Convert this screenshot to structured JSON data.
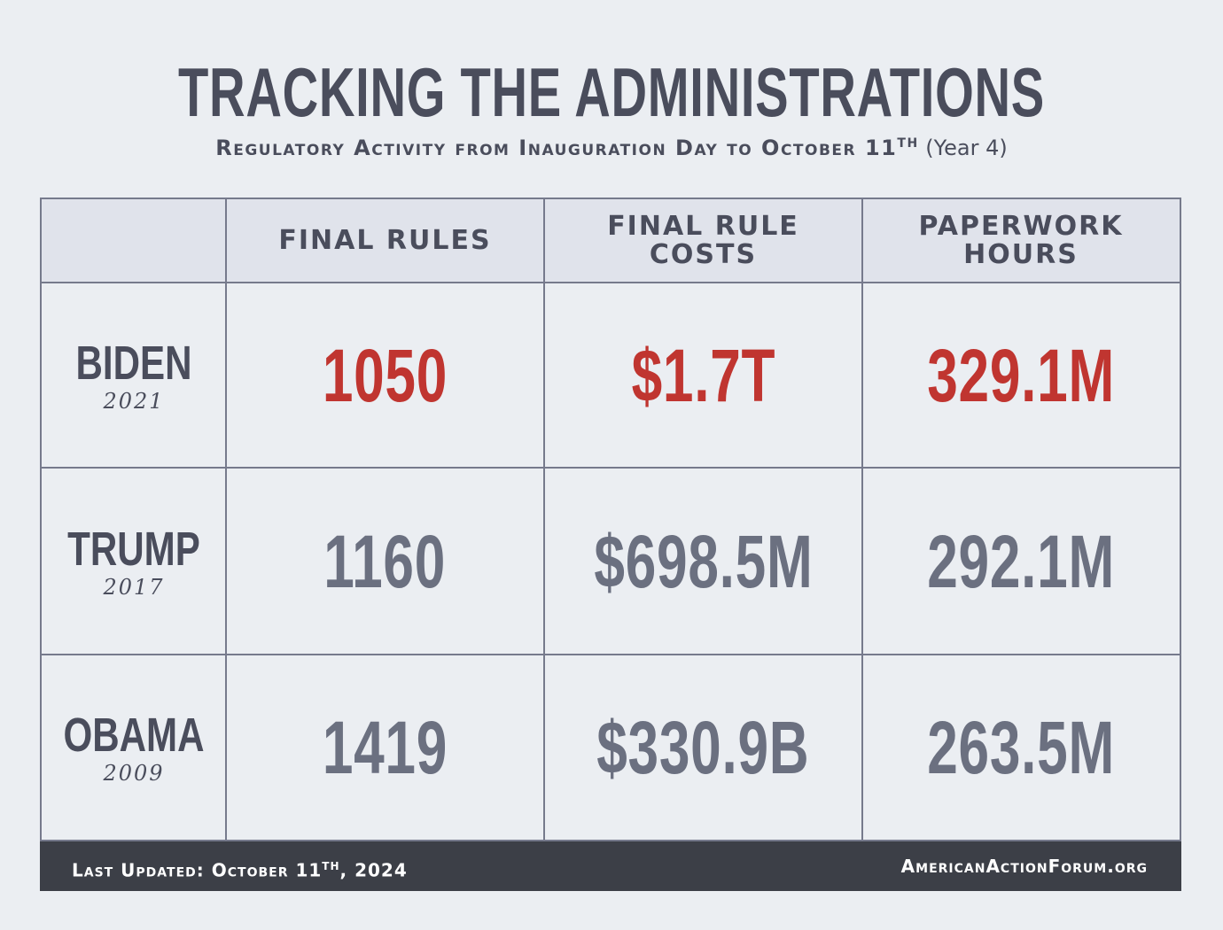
{
  "title": "TRACKING THE ADMINISTRATIONS",
  "subtitle": {
    "main": "Regulatory Activity from Inauguration Day to October 11",
    "superscript": "TH",
    "suffix": " (Year 4)"
  },
  "colors": {
    "highlight": "#c03530",
    "normal": "#6b7080",
    "text_dark": "#4a4d5c",
    "footer_bg": "#3c3f47"
  },
  "chart_data": {
    "type": "table",
    "title": "TRACKING THE ADMINISTRATIONS",
    "columns": [
      "FINAL RULES",
      "FINAL RULE\nCOSTS",
      "PAPERWORK\nHOURS"
    ],
    "rows": [
      {
        "name": "BIDEN",
        "year": "2021",
        "values": [
          "1050",
          "$1.7T",
          "329.1M"
        ],
        "highlight": true
      },
      {
        "name": "TRUMP",
        "year": "2017",
        "values": [
          "1160",
          "$698.5M",
          "292.1M"
        ],
        "highlight": false
      },
      {
        "name": "OBAMA",
        "year": "2009",
        "values": [
          "1419",
          "$330.9B",
          "263.5M"
        ],
        "highlight": false
      }
    ]
  },
  "footer": {
    "updated_label": "Last Updated: October 11",
    "updated_superscript": "TH",
    "updated_suffix": ", 2024",
    "site": "AmericanActionForum.org"
  }
}
